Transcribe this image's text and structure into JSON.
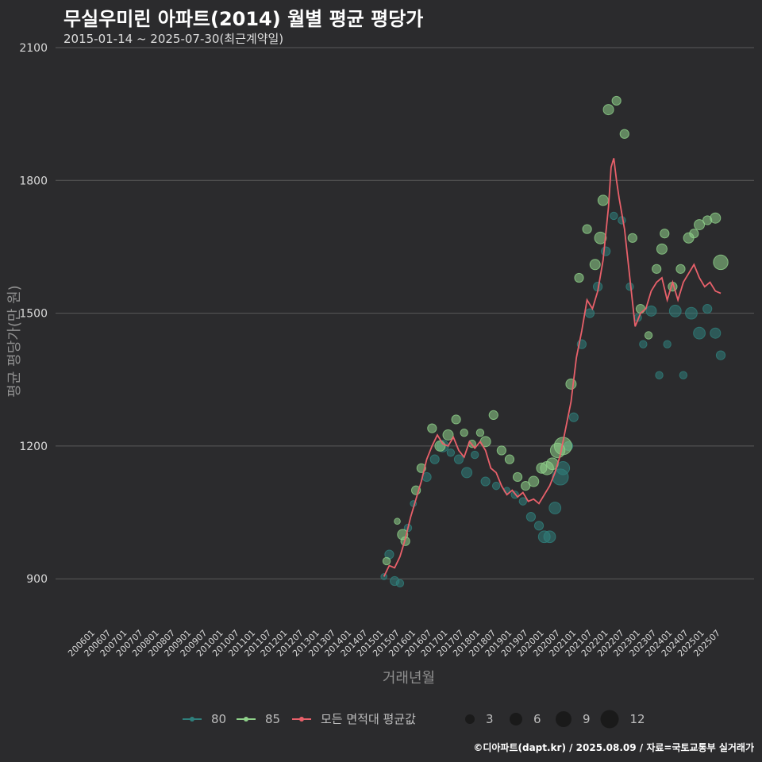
{
  "header": {
    "title": "무실우미린 아파트(2014) 월별 평균 평당가",
    "subtitle": "2015-01-14 ~ 2025-07-30(최근계약일)"
  },
  "footer": {
    "credit": "©디아파트(dapt.kr) / 2025.08.09 / 자료=국토교통부 실거래가"
  },
  "colors": {
    "background": "#2b2b2d",
    "grid": "#5a5a5a",
    "series_80": "#2f7f7c",
    "series_85": "#8fd18a",
    "average_line": "#e8606a"
  },
  "chart_data": {
    "type": "scatter",
    "title": "무실우미린 아파트(2014) 월별 평균 평당가",
    "subtitle": "2015-01-14 ~ 2025-07-30(최근계약일)",
    "xlabel": "거래년월",
    "ylabel": "평균 평당가(만 원)",
    "ylim": [
      800,
      2100
    ],
    "yticks": [
      900,
      1200,
      1500,
      1800,
      2100
    ],
    "xlim": [
      "2006-01",
      "2025-07"
    ],
    "xticks": [
      "200601",
      "200607",
      "200701",
      "200707",
      "200801",
      "200807",
      "200901",
      "200907",
      "201001",
      "201007",
      "201101",
      "201107",
      "201201",
      "201207",
      "201301",
      "201307",
      "201401",
      "201407",
      "201501",
      "201507",
      "201601",
      "201607",
      "201701",
      "201707",
      "201801",
      "201807",
      "201901",
      "201907",
      "202001",
      "202007",
      "202101",
      "202107",
      "202201",
      "202207",
      "202301",
      "202307",
      "202401",
      "202407",
      "202501",
      "202507"
    ],
    "grid": true,
    "legend": {
      "placement": "bottom",
      "series_labels": [
        "80",
        "85",
        "모든 면적대 평균값"
      ],
      "size_labels": [
        "3",
        "6",
        "9",
        "12"
      ]
    },
    "series": [
      {
        "name": "80",
        "color": "#2f7f7c",
        "points": [
          [
            "2015-01",
            905,
            2
          ],
          [
            "2015-03",
            955,
            4
          ],
          [
            "2015-05",
            895,
            4
          ],
          [
            "2015-07",
            890,
            3
          ],
          [
            "2015-10",
            1015,
            3
          ],
          [
            "2015-12",
            1070,
            2
          ],
          [
            "2016-05",
            1130,
            4
          ],
          [
            "2016-08",
            1170,
            4
          ],
          [
            "2016-11",
            1200,
            6
          ],
          [
            "2017-02",
            1185,
            3
          ],
          [
            "2017-05",
            1170,
            4
          ],
          [
            "2017-08",
            1140,
            5
          ],
          [
            "2017-11",
            1180,
            3
          ],
          [
            "2018-03",
            1120,
            4
          ],
          [
            "2018-07",
            1110,
            3
          ],
          [
            "2018-11",
            1100,
            2
          ],
          [
            "2019-02",
            1090,
            3
          ],
          [
            "2019-05",
            1075,
            3
          ],
          [
            "2019-08",
            1040,
            4
          ],
          [
            "2019-11",
            1020,
            4
          ],
          [
            "2020-01",
            995,
            6
          ],
          [
            "2020-03",
            995,
            6
          ],
          [
            "2020-05",
            1060,
            6
          ],
          [
            "2020-07",
            1130,
            9
          ],
          [
            "2020-08",
            1150,
            7
          ],
          [
            "2020-10",
            1200,
            4
          ],
          [
            "2020-12",
            1265,
            4
          ],
          [
            "2021-03",
            1430,
            4
          ],
          [
            "2021-06",
            1500,
            4
          ],
          [
            "2021-09",
            1560,
            4
          ],
          [
            "2021-12",
            1640,
            4
          ],
          [
            "2022-03",
            1720,
            3
          ],
          [
            "2022-06",
            1710,
            3
          ],
          [
            "2022-09",
            1560,
            3
          ],
          [
            "2022-12",
            1490,
            3
          ],
          [
            "2023-02",
            1430,
            3
          ],
          [
            "2023-05",
            1505,
            5
          ],
          [
            "2023-08",
            1360,
            3
          ],
          [
            "2023-11",
            1430,
            3
          ],
          [
            "2024-02",
            1505,
            6
          ],
          [
            "2024-05",
            1360,
            3
          ],
          [
            "2024-08",
            1500,
            6
          ],
          [
            "2024-11",
            1455,
            6
          ],
          [
            "2025-02",
            1510,
            4
          ],
          [
            "2025-05",
            1455,
            5
          ],
          [
            "2025-07",
            1405,
            4
          ]
        ]
      },
      {
        "name": "85",
        "color": "#8fd18a",
        "points": [
          [
            "2015-02",
            940,
            3
          ],
          [
            "2015-06",
            1030,
            2
          ],
          [
            "2015-08",
            1000,
            5
          ],
          [
            "2015-09",
            985,
            4
          ],
          [
            "2016-01",
            1100,
            4
          ],
          [
            "2016-03",
            1150,
            4
          ],
          [
            "2016-07",
            1240,
            4
          ],
          [
            "2016-10",
            1200,
            5
          ],
          [
            "2017-01",
            1225,
            5
          ],
          [
            "2017-04",
            1260,
            4
          ],
          [
            "2017-07",
            1230,
            3
          ],
          [
            "2017-10",
            1205,
            3
          ],
          [
            "2018-01",
            1230,
            3
          ],
          [
            "2018-03",
            1210,
            5
          ],
          [
            "2018-06",
            1270,
            4
          ],
          [
            "2018-09",
            1190,
            4
          ],
          [
            "2018-12",
            1170,
            4
          ],
          [
            "2019-03",
            1130,
            4
          ],
          [
            "2019-06",
            1110,
            4
          ],
          [
            "2019-09",
            1120,
            5
          ],
          [
            "2019-12",
            1150,
            5
          ],
          [
            "2020-02",
            1150,
            7
          ],
          [
            "2020-04",
            1160,
            6
          ],
          [
            "2020-06",
            1190,
            8
          ],
          [
            "2020-08",
            1200,
            10
          ],
          [
            "2020-11",
            1340,
            5
          ],
          [
            "2021-02",
            1580,
            4
          ],
          [
            "2021-05",
            1690,
            4
          ],
          [
            "2021-08",
            1610,
            5
          ],
          [
            "2021-10",
            1670,
            6
          ],
          [
            "2021-11",
            1755,
            5
          ],
          [
            "2022-01",
            1960,
            5
          ],
          [
            "2022-04",
            1980,
            4
          ],
          [
            "2022-07",
            1905,
            4
          ],
          [
            "2022-10",
            1670,
            4
          ],
          [
            "2023-01",
            1510,
            4
          ],
          [
            "2023-04",
            1450,
            3
          ],
          [
            "2023-07",
            1600,
            4
          ],
          [
            "2023-09",
            1645,
            5
          ],
          [
            "2023-10",
            1680,
            4
          ],
          [
            "2024-01",
            1560,
            4
          ],
          [
            "2024-04",
            1600,
            4
          ],
          [
            "2024-07",
            1670,
            5
          ],
          [
            "2024-09",
            1680,
            4
          ],
          [
            "2024-11",
            1700,
            5
          ],
          [
            "2025-02",
            1710,
            4
          ],
          [
            "2025-05",
            1715,
            5
          ],
          [
            "2025-07",
            1615,
            8
          ]
        ]
      },
      {
        "name": "모든 면적대 평균값",
        "color": "#e8606a",
        "line": [
          [
            "2015-01",
            905
          ],
          [
            "2015-03",
            930
          ],
          [
            "2015-05",
            925
          ],
          [
            "2015-07",
            950
          ],
          [
            "2015-09",
            990
          ],
          [
            "2015-11",
            1040
          ],
          [
            "2016-01",
            1080
          ],
          [
            "2016-03",
            1120
          ],
          [
            "2016-05",
            1170
          ],
          [
            "2016-07",
            1200
          ],
          [
            "2016-09",
            1225
          ],
          [
            "2016-11",
            1205
          ],
          [
            "2017-01",
            1200
          ],
          [
            "2017-03",
            1220
          ],
          [
            "2017-05",
            1190
          ],
          [
            "2017-07",
            1175
          ],
          [
            "2017-09",
            1210
          ],
          [
            "2017-11",
            1195
          ],
          [
            "2018-01",
            1210
          ],
          [
            "2018-03",
            1190
          ],
          [
            "2018-05",
            1150
          ],
          [
            "2018-07",
            1140
          ],
          [
            "2018-09",
            1110
          ],
          [
            "2018-11",
            1090
          ],
          [
            "2019-01",
            1100
          ],
          [
            "2019-03",
            1085
          ],
          [
            "2019-05",
            1095
          ],
          [
            "2019-07",
            1075
          ],
          [
            "2019-09",
            1080
          ],
          [
            "2019-11",
            1070
          ],
          [
            "2020-01",
            1090
          ],
          [
            "2020-03",
            1110
          ],
          [
            "2020-05",
            1140
          ],
          [
            "2020-07",
            1180
          ],
          [
            "2020-09",
            1240
          ],
          [
            "2020-11",
            1300
          ],
          [
            "2021-01",
            1400
          ],
          [
            "2021-03",
            1460
          ],
          [
            "2021-05",
            1530
          ],
          [
            "2021-07",
            1510
          ],
          [
            "2021-09",
            1550
          ],
          [
            "2021-11",
            1620
          ],
          [
            "2022-01",
            1740
          ],
          [
            "2022-02",
            1830
          ],
          [
            "2022-03",
            1850
          ],
          [
            "2022-04",
            1800
          ],
          [
            "2022-05",
            1760
          ],
          [
            "2022-07",
            1690
          ],
          [
            "2022-09",
            1580
          ],
          [
            "2022-11",
            1470
          ],
          [
            "2023-01",
            1500
          ],
          [
            "2023-03",
            1510
          ],
          [
            "2023-05",
            1550
          ],
          [
            "2023-07",
            1570
          ],
          [
            "2023-09",
            1580
          ],
          [
            "2023-11",
            1530
          ],
          [
            "2024-01",
            1570
          ],
          [
            "2024-03",
            1530
          ],
          [
            "2024-05",
            1570
          ],
          [
            "2024-07",
            1590
          ],
          [
            "2024-09",
            1610
          ],
          [
            "2024-11",
            1580
          ],
          [
            "2025-01",
            1560
          ],
          [
            "2025-03",
            1570
          ],
          [
            "2025-05",
            1550
          ],
          [
            "2025-07",
            1545
          ]
        ]
      }
    ]
  }
}
